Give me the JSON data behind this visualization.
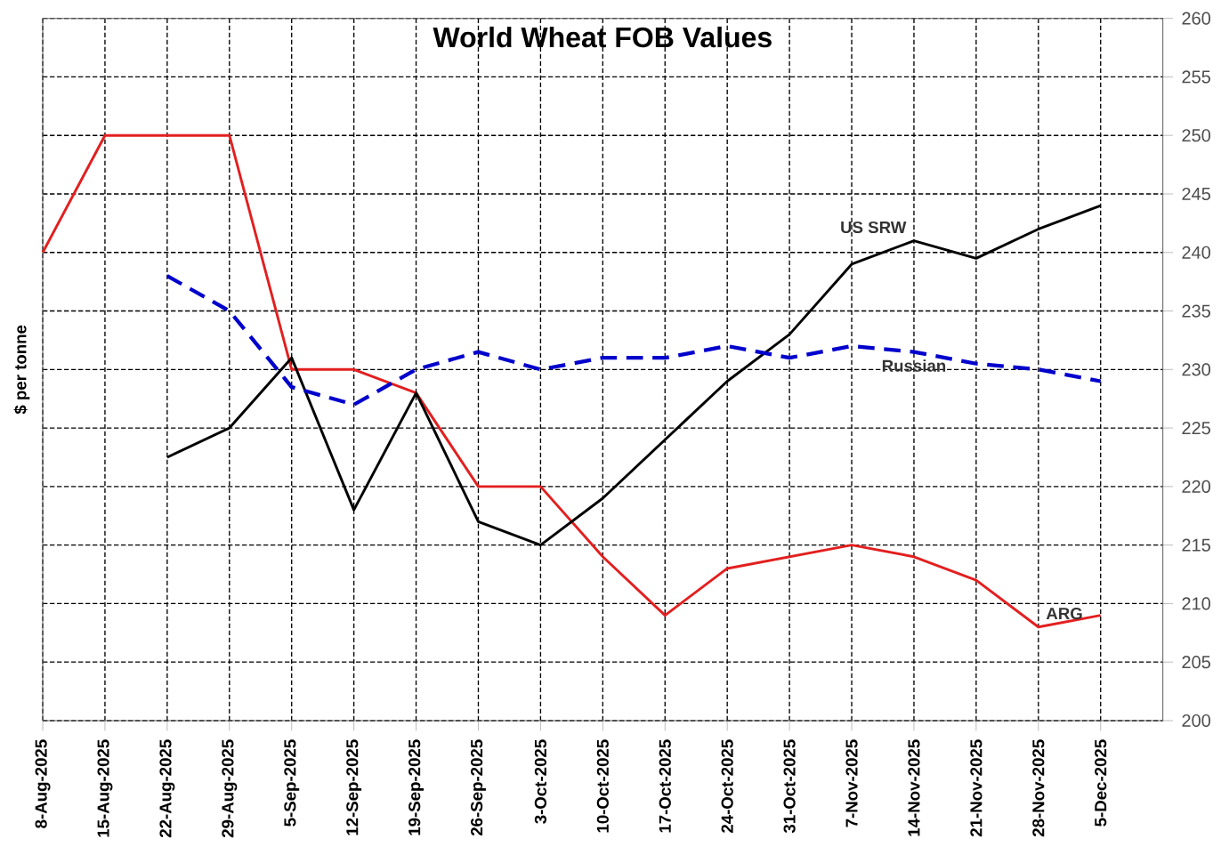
{
  "chart_data": {
    "type": "line",
    "title": "World Wheat FOB Values",
    "ylabel": "$ per tonne",
    "categories": [
      "8-Aug-2025",
      "15-Aug-2025",
      "22-Aug-2025",
      "29-Aug-2025",
      "5-Sep-2025",
      "12-Sep-2025",
      "19-Sep-2025",
      "26-Sep-2025",
      "3-Oct-2025",
      "10-Oct-2025",
      "17-Oct-2025",
      "24-Oct-2025",
      "31-Oct-2025",
      "7-Nov-2025",
      "14-Nov-2025",
      "21-Nov-2025",
      "28-Nov-2025",
      "5-Dec-2025"
    ],
    "series": [
      {
        "name": "ARG",
        "color": "#e31f1f",
        "line_style": "solid",
        "values": [
          240,
          250,
          250,
          250,
          230,
          230,
          228,
          220,
          220,
          214,
          209,
          213,
          214,
          215,
          214,
          212,
          208,
          209
        ]
      },
      {
        "name": "US SRW",
        "color": "#000000",
        "line_style": "solid",
        "values": [
          null,
          null,
          222.5,
          225,
          231,
          218,
          228,
          217,
          215,
          219,
          224,
          229,
          233,
          239,
          241,
          239.5,
          242,
          244
        ]
      },
      {
        "name": "Russian",
        "color": "#0000cc",
        "line_style": "dashed",
        "values": [
          null,
          null,
          238,
          235,
          228.5,
          227,
          230,
          231.5,
          230,
          231,
          231,
          232,
          231,
          232,
          231.5,
          230.5,
          230,
          229
        ]
      }
    ],
    "ylim": [
      200,
      260
    ],
    "yticks": [
      200,
      205,
      210,
      215,
      220,
      225,
      230,
      235,
      240,
      245,
      250,
      255,
      260
    ],
    "grid": true,
    "legend": false,
    "marker": "none"
  }
}
